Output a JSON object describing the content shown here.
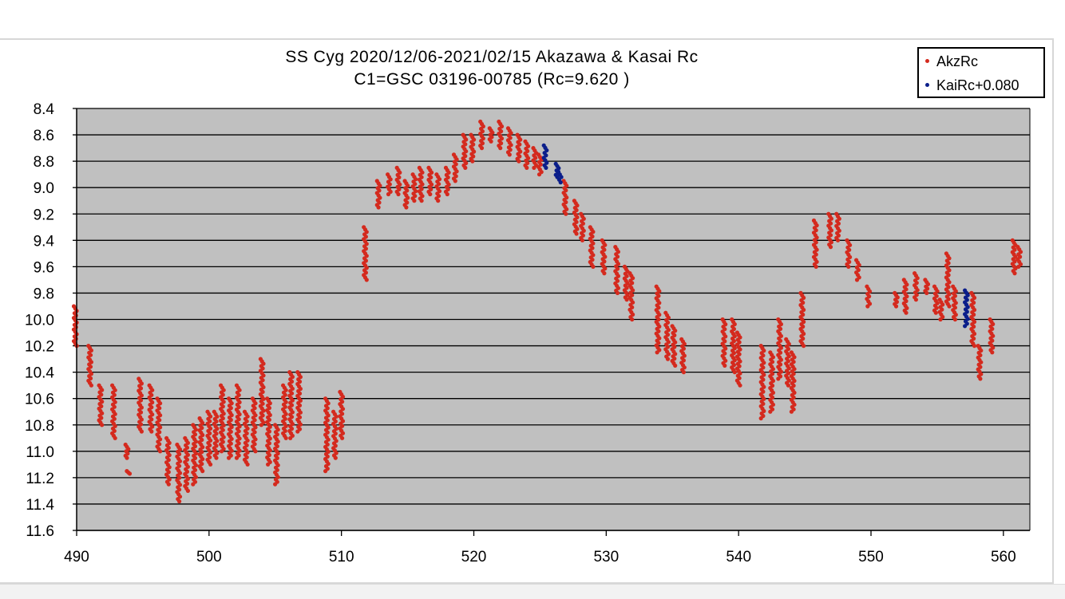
{
  "colors": {
    "plot_background": "#c0c0c0",
    "gridline": "#000000",
    "AkzRc": "#d42a1e",
    "KaiRc": "#0b1e8a"
  },
  "chart_data": {
    "type": "scatter",
    "title": "SS Cyg  2020/12/06-2021/02/15   Akazawa & Kasai Rc",
    "subtitle": "C1=GSC 03196-00785  (Rc=9.620 )",
    "xlabel": "",
    "ylabel": "",
    "xlim": [
      490,
      562
    ],
    "ylim": [
      8.4,
      11.6
    ],
    "y_inverted": true,
    "grid": true,
    "legend_position": "top-right",
    "x_ticks": [
      "490",
      "500",
      "510",
      "520",
      "530",
      "540",
      "550",
      "560"
    ],
    "y_ticks": [
      "8.4",
      "8.6",
      "8.8",
      "9.0",
      "9.2",
      "9.4",
      "9.6",
      "9.8",
      "10.0",
      "10.2",
      "10.4",
      "10.6",
      "10.8",
      "11.0",
      "11.2",
      "11.4",
      "11.6"
    ],
    "series": [
      {
        "name": "AkzRc",
        "color": "#d42a1e",
        "segments": [
          [
            489.9,
            9.9,
            10.2
          ],
          [
            491.0,
            10.2,
            10.5
          ],
          [
            491.8,
            10.5,
            10.8
          ],
          [
            492.8,
            10.5,
            10.9
          ],
          [
            493.8,
            10.95,
            11.05
          ],
          [
            493.9,
            11.15,
            11.17
          ],
          [
            494.8,
            10.45,
            10.85
          ],
          [
            495.6,
            10.5,
            10.85
          ],
          [
            496.2,
            10.6,
            11.0
          ],
          [
            496.9,
            10.9,
            11.25
          ],
          [
            497.7,
            10.95,
            11.38
          ],
          [
            498.3,
            10.9,
            11.3
          ],
          [
            498.9,
            10.8,
            11.25
          ],
          [
            499.4,
            10.75,
            11.15
          ],
          [
            500.0,
            10.7,
            11.1
          ],
          [
            500.5,
            10.7,
            11.05
          ],
          [
            501.0,
            10.5,
            11.0
          ],
          [
            501.6,
            10.6,
            11.05
          ],
          [
            502.2,
            10.5,
            11.05
          ],
          [
            502.8,
            10.7,
            11.1
          ],
          [
            503.4,
            10.6,
            11.0
          ],
          [
            504.0,
            10.3,
            10.8
          ],
          [
            504.5,
            10.6,
            11.1
          ],
          [
            505.1,
            10.8,
            11.25
          ],
          [
            505.7,
            10.5,
            10.9
          ],
          [
            506.2,
            10.4,
            10.9
          ],
          [
            506.8,
            10.4,
            10.85
          ],
          [
            508.9,
            10.6,
            11.15
          ],
          [
            509.5,
            10.7,
            11.05
          ],
          [
            510.0,
            10.55,
            10.9
          ],
          [
            511.8,
            9.3,
            9.7
          ],
          [
            512.8,
            8.95,
            9.15
          ],
          [
            513.6,
            8.9,
            9.05
          ],
          [
            514.3,
            8.85,
            9.05
          ],
          [
            514.9,
            8.95,
            9.15
          ],
          [
            515.5,
            8.9,
            9.1
          ],
          [
            516.0,
            8.85,
            9.1
          ],
          [
            516.7,
            8.85,
            9.05
          ],
          [
            517.3,
            8.9,
            9.1
          ],
          [
            518.0,
            8.85,
            9.05
          ],
          [
            518.6,
            8.75,
            8.95
          ],
          [
            519.3,
            8.6,
            8.85
          ],
          [
            519.9,
            8.6,
            8.8
          ],
          [
            520.6,
            8.5,
            8.7
          ],
          [
            521.3,
            8.55,
            8.65
          ],
          [
            522.0,
            8.5,
            8.7
          ],
          [
            522.7,
            8.55,
            8.75
          ],
          [
            523.4,
            8.6,
            8.8
          ],
          [
            524.0,
            8.65,
            8.85
          ],
          [
            524.6,
            8.7,
            8.85
          ],
          [
            525.0,
            8.75,
            8.9
          ],
          [
            526.9,
            8.95,
            9.2
          ],
          [
            527.7,
            9.1,
            9.35
          ],
          [
            528.2,
            9.2,
            9.4
          ],
          [
            528.9,
            9.3,
            9.6
          ],
          [
            529.8,
            9.4,
            9.65
          ],
          [
            530.8,
            9.45,
            9.8
          ],
          [
            531.5,
            9.6,
            9.85
          ],
          [
            531.9,
            9.65,
            10.0
          ],
          [
            533.9,
            9.75,
            10.25
          ],
          [
            534.6,
            9.95,
            10.3
          ],
          [
            535.1,
            10.05,
            10.35
          ],
          [
            535.8,
            10.15,
            10.4
          ],
          [
            538.9,
            10.0,
            10.35
          ],
          [
            539.6,
            10.0,
            10.4
          ],
          [
            540.0,
            10.1,
            10.5
          ],
          [
            541.8,
            10.2,
            10.75
          ],
          [
            542.5,
            10.25,
            10.7
          ],
          [
            543.1,
            10.0,
            10.45
          ],
          [
            543.7,
            10.15,
            10.5
          ],
          [
            544.1,
            10.25,
            10.7
          ],
          [
            544.8,
            9.8,
            10.2
          ],
          [
            545.8,
            9.25,
            9.6
          ],
          [
            546.9,
            9.2,
            9.45
          ],
          [
            547.5,
            9.2,
            9.4
          ],
          [
            548.3,
            9.4,
            9.6
          ],
          [
            549.0,
            9.55,
            9.7
          ],
          [
            549.8,
            9.75,
            9.9
          ],
          [
            551.9,
            9.8,
            9.9
          ],
          [
            552.6,
            9.7,
            9.95
          ],
          [
            553.4,
            9.65,
            9.85
          ],
          [
            554.2,
            9.7,
            9.8
          ],
          [
            554.9,
            9.75,
            9.95
          ],
          [
            555.3,
            9.85,
            10.0
          ],
          [
            555.8,
            9.5,
            9.9
          ],
          [
            556.3,
            9.75,
            10.0
          ],
          [
            557.7,
            9.8,
            10.2
          ],
          [
            558.2,
            10.2,
            10.45
          ],
          [
            559.1,
            10.0,
            10.25
          ],
          [
            560.8,
            9.4,
            9.65
          ],
          [
            561.2,
            9.45,
            9.6
          ]
        ]
      },
      {
        "name": "KaiRc+0.080",
        "color": "#0b1e8a",
        "segments": [
          [
            525.4,
            8.68,
            8.85
          ],
          [
            526.3,
            8.82,
            8.92
          ],
          [
            526.5,
            8.88,
            8.96
          ],
          [
            557.2,
            9.78,
            10.05
          ]
        ]
      }
    ]
  }
}
